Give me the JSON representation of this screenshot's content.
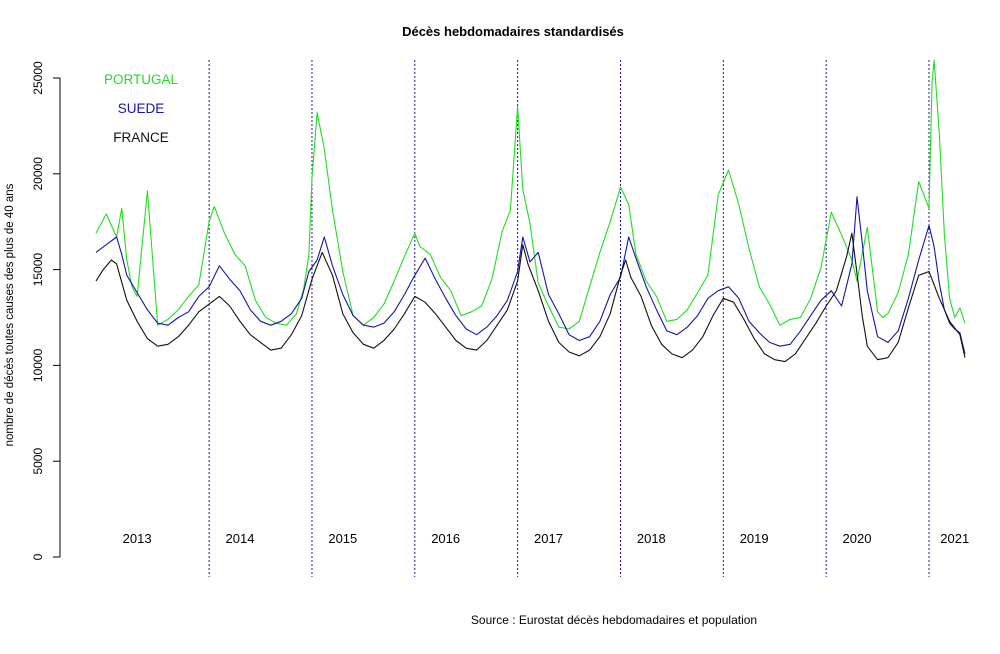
{
  "chart_data": {
    "type": "line",
    "title": "Décès hebdomadaires standardisés",
    "ylabel": "nombre de décès toutes causes des plus de 40 ans",
    "xlabel": "",
    "source": "Source : Eurostat décès hebdomadaires et population",
    "ylim": [
      0,
      26000
    ],
    "yticks": [
      0,
      5000,
      10000,
      15000,
      20000,
      25000
    ],
    "xlim": [
      2012.55,
      2021.35
    ],
    "grid": false,
    "legend": {
      "placement": "top-left",
      "entries": [
        {
          "name": "PORTUGAL",
          "color": "#22dd22"
        },
        {
          "name": "SUEDE",
          "color": "#1515a8"
        },
        {
          "name": "FRANCE",
          "color": "#111111"
        }
      ]
    },
    "year_labels": [
      {
        "label": "2013",
        "x": 2013.3
      },
      {
        "label": "2014",
        "x": 2014.3
      },
      {
        "label": "2015",
        "x": 2015.3
      },
      {
        "label": "2016",
        "x": 2016.3
      },
      {
        "label": "2017",
        "x": 2017.3
      },
      {
        "label": "2018",
        "x": 2018.3
      },
      {
        "label": "2019",
        "x": 2019.3
      },
      {
        "label": "2020",
        "x": 2020.3
      },
      {
        "label": "2021",
        "x": 2021.25
      }
    ],
    "year_boundaries": [
      2014.0,
      2015.0,
      2016.0,
      2017.0,
      2018.0,
      2019.0,
      2020.0,
      2021.0
    ],
    "series": [
      {
        "name": "PORTUGAL",
        "color": "#22dd22",
        "x": [
          2012.9,
          2013.0,
          2013.1,
          2013.15,
          2013.2,
          2013.25,
          2013.3,
          2013.4,
          2013.5,
          2013.6,
          2013.7,
          2013.8,
          2013.9,
          2014.0,
          2014.05,
          2014.15,
          2014.25,
          2014.35,
          2014.45,
          2014.55,
          2014.65,
          2014.75,
          2014.85,
          2014.92,
          2014.97,
          2015.0,
          2015.05,
          2015.12,
          2015.2,
          2015.3,
          2015.4,
          2015.5,
          2015.6,
          2015.7,
          2015.8,
          2015.9,
          2016.0,
          2016.05,
          2016.15,
          2016.25,
          2016.35,
          2016.45,
          2016.55,
          2016.65,
          2016.75,
          2016.85,
          2016.93,
          2017.0,
          2017.05,
          2017.12,
          2017.2,
          2017.3,
          2017.4,
          2017.5,
          2017.6,
          2017.7,
          2017.8,
          2017.9,
          2018.0,
          2018.08,
          2018.15,
          2018.25,
          2018.35,
          2018.45,
          2018.55,
          2018.65,
          2018.75,
          2018.85,
          2018.95,
          2019.05,
          2019.15,
          2019.25,
          2019.35,
          2019.45,
          2019.55,
          2019.65,
          2019.75,
          2019.85,
          2019.95,
          2020.05,
          2020.15,
          2020.25,
          2020.3,
          2020.4,
          2020.5,
          2020.55,
          2020.6,
          2020.7,
          2020.8,
          2020.9,
          2021.0,
          2021.03,
          2021.05,
          2021.1,
          2021.15,
          2021.2,
          2021.25,
          2021.3,
          2021.35
        ],
        "values": [
          16900,
          17900,
          16700,
          18200,
          15500,
          14100,
          13600,
          19100,
          12100,
          12400,
          12900,
          13600,
          14200,
          17500,
          18300,
          16900,
          15800,
          15200,
          13400,
          12500,
          12200,
          12100,
          12700,
          14000,
          15800,
          19800,
          23200,
          21300,
          18100,
          14900,
          12600,
          12100,
          12500,
          13200,
          14400,
          15700,
          16900,
          16200,
          15800,
          14600,
          13900,
          12600,
          12800,
          13100,
          14500,
          17000,
          18100,
          23500,
          19200,
          17400,
          14300,
          13100,
          12000,
          11900,
          12300,
          14100,
          15900,
          17500,
          19300,
          18400,
          15800,
          14400,
          13600,
          12300,
          12400,
          12900,
          13800,
          14700,
          18900,
          20200,
          18400,
          16100,
          14100,
          13200,
          12100,
          12400,
          12500,
          13500,
          15100,
          18000,
          16800,
          15500,
          14400,
          17200,
          12800,
          12500,
          12700,
          13800,
          15800,
          19600,
          18200,
          24800,
          26000,
          22100,
          16800,
          13500,
          12500,
          13000,
          12200
        ]
      },
      {
        "name": "SUEDE",
        "color": "#1515a8",
        "x": [
          2012.9,
          2013.0,
          2013.1,
          2013.15,
          2013.2,
          2013.3,
          2013.4,
          2013.5,
          2013.6,
          2013.7,
          2013.8,
          2013.9,
          2014.0,
          2014.1,
          2014.2,
          2014.3,
          2014.4,
          2014.5,
          2014.6,
          2014.7,
          2014.8,
          2014.9,
          2014.97,
          2015.05,
          2015.12,
          2015.2,
          2015.3,
          2015.4,
          2015.5,
          2015.6,
          2015.7,
          2015.8,
          2015.9,
          2016.0,
          2016.1,
          2016.2,
          2016.3,
          2016.4,
          2016.5,
          2016.6,
          2016.7,
          2016.8,
          2016.9,
          2017.0,
          2017.05,
          2017.12,
          2017.2,
          2017.3,
          2017.4,
          2017.5,
          2017.6,
          2017.7,
          2017.8,
          2017.9,
          2018.0,
          2018.08,
          2018.15,
          2018.25,
          2018.35,
          2018.45,
          2018.55,
          2018.65,
          2018.75,
          2018.85,
          2018.95,
          2019.05,
          2019.15,
          2019.25,
          2019.35,
          2019.45,
          2019.55,
          2019.65,
          2019.75,
          2019.85,
          2019.95,
          2020.05,
          2020.15,
          2020.25,
          2020.3,
          2020.35,
          2020.4,
          2020.5,
          2020.6,
          2020.7,
          2020.8,
          2020.9,
          2021.0,
          2021.05,
          2021.1,
          2021.15,
          2021.2,
          2021.25,
          2021.3,
          2021.35
        ],
        "values": [
          15900,
          16300,
          16700,
          15800,
          14700,
          13800,
          12900,
          12200,
          12100,
          12500,
          12800,
          13600,
          14100,
          15200,
          14500,
          13900,
          12900,
          12300,
          12100,
          12300,
          12700,
          13500,
          14900,
          15500,
          16700,
          15200,
          13700,
          12600,
          12100,
          12000,
          12200,
          12800,
          13700,
          14700,
          15600,
          14500,
          13500,
          12600,
          11900,
          11600,
          12000,
          12600,
          13400,
          14900,
          16700,
          15400,
          15900,
          13700,
          12700,
          11600,
          11300,
          11500,
          12300,
          13700,
          14600,
          16700,
          15600,
          14100,
          12900,
          11800,
          11600,
          12000,
          12600,
          13500,
          13900,
          14100,
          13500,
          12300,
          11700,
          11200,
          11000,
          11100,
          11800,
          12600,
          13400,
          13900,
          13100,
          15300,
          18800,
          16400,
          13900,
          11500,
          11200,
          11800,
          13500,
          15500,
          17300,
          16200,
          14300,
          12900,
          12200,
          11900,
          11700,
          10600
        ]
      },
      {
        "name": "FRANCE",
        "color": "#111111",
        "x": [
          2012.9,
          2012.97,
          2013.05,
          2013.1,
          2013.2,
          2013.3,
          2013.4,
          2013.5,
          2013.6,
          2013.7,
          2013.8,
          2013.9,
          2014.0,
          2014.1,
          2014.2,
          2014.3,
          2014.4,
          2014.5,
          2014.6,
          2014.7,
          2014.8,
          2014.9,
          2015.0,
          2015.1,
          2015.2,
          2015.3,
          2015.4,
          2015.5,
          2015.6,
          2015.7,
          2015.8,
          2015.9,
          2016.0,
          2016.1,
          2016.2,
          2016.3,
          2016.4,
          2016.5,
          2016.6,
          2016.7,
          2016.8,
          2016.9,
          2017.0,
          2017.05,
          2017.1,
          2017.2,
          2017.3,
          2017.4,
          2017.5,
          2017.6,
          2017.7,
          2017.8,
          2017.9,
          2018.0,
          2018.05,
          2018.1,
          2018.2,
          2018.3,
          2018.4,
          2018.5,
          2018.6,
          2018.7,
          2018.8,
          2018.9,
          2019.0,
          2019.1,
          2019.2,
          2019.3,
          2019.4,
          2019.5,
          2019.6,
          2019.7,
          2019.8,
          2019.9,
          2020.0,
          2020.1,
          2020.2,
          2020.25,
          2020.3,
          2020.35,
          2020.4,
          2020.5,
          2020.6,
          2020.7,
          2020.8,
          2020.9,
          2021.0,
          2021.1,
          2021.2,
          2021.3,
          2021.35
        ],
        "values": [
          14400,
          15000,
          15500,
          15300,
          13400,
          12300,
          11400,
          11000,
          11100,
          11500,
          12100,
          12800,
          13200,
          13600,
          13100,
          12300,
          11600,
          11200,
          10800,
          10900,
          11600,
          12600,
          14500,
          15900,
          14700,
          12700,
          11700,
          11100,
          10900,
          11300,
          11900,
          12700,
          13600,
          13300,
          12700,
          12000,
          11300,
          10900,
          10800,
          11300,
          12100,
          12900,
          14400,
          16300,
          15300,
          13900,
          12300,
          11200,
          10700,
          10500,
          10800,
          11500,
          12700,
          14700,
          15500,
          14600,
          13600,
          12100,
          11100,
          10600,
          10400,
          10800,
          11500,
          12600,
          13500,
          13300,
          12400,
          11400,
          10600,
          10300,
          10200,
          10600,
          11400,
          12200,
          13100,
          13900,
          15700,
          16900,
          14800,
          12600,
          11000,
          10300,
          10400,
          11200,
          13000,
          14700,
          14900,
          13500,
          12300,
          11600,
          10400
        ]
      }
    ]
  }
}
